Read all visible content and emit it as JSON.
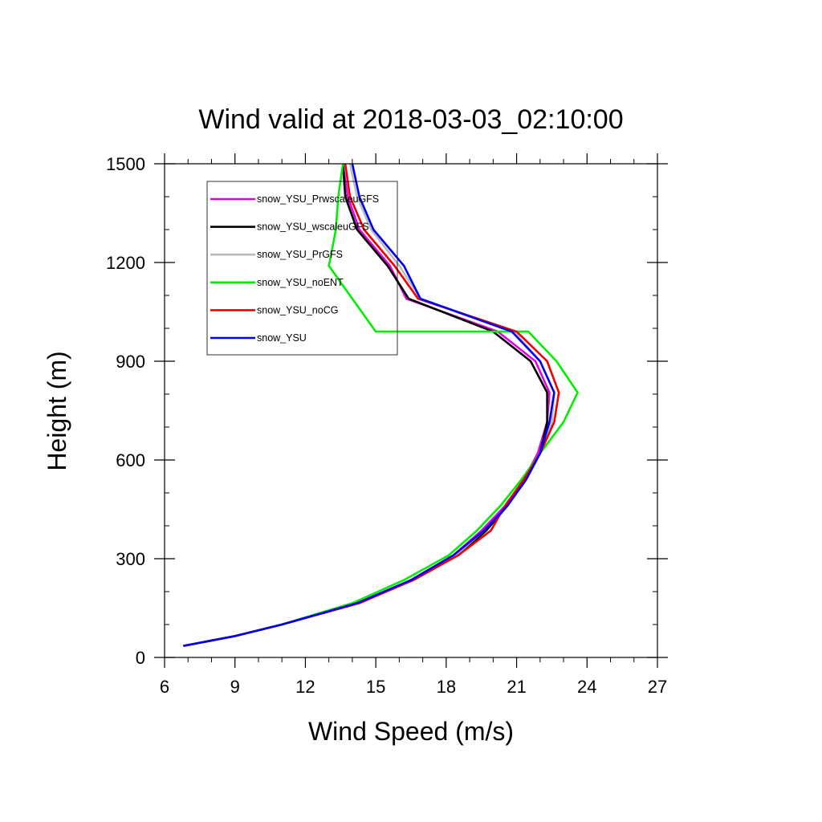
{
  "chart_data": {
    "type": "line",
    "title": "Wind valid at 2018-03-03_02:10:00",
    "xlabel": "Wind Speed (m/s)",
    "ylabel": "Height (m)",
    "xlim": [
      6,
      27
    ],
    "ylim": [
      0,
      1500
    ],
    "xticks": [
      6,
      9,
      12,
      15,
      18,
      21,
      24,
      27
    ],
    "yticks": [
      0,
      300,
      600,
      900,
      1200,
      1500
    ],
    "legend_position": "upper-left",
    "series": [
      {
        "name": "snow_YSU_PrwscaleuGFS",
        "color": "#e600e6",
        "points": [
          [
            6.8,
            35
          ],
          [
            9.0,
            65
          ],
          [
            11.0,
            100
          ],
          [
            14.2,
            165
          ],
          [
            16.5,
            235
          ],
          [
            18.3,
            310
          ],
          [
            19.5,
            385
          ],
          [
            20.5,
            460
          ],
          [
            21.3,
            540
          ],
          [
            21.9,
            620
          ],
          [
            22.3,
            715
          ],
          [
            22.4,
            805
          ],
          [
            21.8,
            900
          ],
          [
            20.2,
            990
          ],
          [
            16.3,
            1090
          ],
          [
            15.6,
            1190
          ],
          [
            14.3,
            1300
          ],
          [
            13.8,
            1400
          ],
          [
            13.6,
            1500
          ]
        ]
      },
      {
        "name": "snow_YSU_wscaleuGFS",
        "color": "#000000",
        "points": [
          [
            6.8,
            35
          ],
          [
            9.0,
            65
          ],
          [
            11.0,
            100
          ],
          [
            14.2,
            165
          ],
          [
            16.6,
            235
          ],
          [
            18.5,
            310
          ],
          [
            19.7,
            385
          ],
          [
            20.6,
            460
          ],
          [
            21.4,
            540
          ],
          [
            22.0,
            620
          ],
          [
            22.3,
            715
          ],
          [
            22.3,
            805
          ],
          [
            21.6,
            900
          ],
          [
            20.0,
            990
          ],
          [
            16.4,
            1090
          ],
          [
            15.5,
            1190
          ],
          [
            14.2,
            1300
          ],
          [
            13.7,
            1400
          ],
          [
            13.6,
            1500
          ]
        ]
      },
      {
        "name": "snow_YSU_PrGFS",
        "color": "#bbbbbb",
        "points": [
          [
            6.8,
            35
          ],
          [
            9.0,
            65
          ],
          [
            11.0,
            100
          ],
          [
            14.2,
            165
          ],
          [
            16.5,
            235
          ],
          [
            18.4,
            310
          ],
          [
            19.6,
            385
          ],
          [
            20.6,
            460
          ],
          [
            21.4,
            540
          ],
          [
            22.0,
            620
          ],
          [
            22.5,
            715
          ],
          [
            22.6,
            805
          ],
          [
            22.0,
            900
          ],
          [
            20.9,
            990
          ],
          [
            16.9,
            1090
          ],
          [
            16.0,
            1190
          ],
          [
            14.8,
            1300
          ],
          [
            14.2,
            1400
          ],
          [
            13.9,
            1500
          ]
        ]
      },
      {
        "name": "snow_YSU_noENT",
        "color": "#00ee00",
        "points": [
          [
            6.8,
            35
          ],
          [
            9.0,
            65
          ],
          [
            11.0,
            100
          ],
          [
            14.0,
            165
          ],
          [
            16.2,
            235
          ],
          [
            18.1,
            310
          ],
          [
            19.3,
            385
          ],
          [
            20.3,
            460
          ],
          [
            21.2,
            540
          ],
          [
            22.0,
            620
          ],
          [
            23.0,
            715
          ],
          [
            23.6,
            805
          ],
          [
            22.7,
            900
          ],
          [
            21.5,
            990
          ],
          [
            15.0,
            990
          ],
          [
            14.0,
            1090
          ],
          [
            13.0,
            1190
          ],
          [
            13.3,
            1300
          ],
          [
            13.4,
            1400
          ],
          [
            13.6,
            1500
          ]
        ]
      },
      {
        "name": "snow_YSU_noCG",
        "color": "#ee0000",
        "points": [
          [
            6.8,
            35
          ],
          [
            9.0,
            65
          ],
          [
            11.0,
            100
          ],
          [
            14.3,
            165
          ],
          [
            16.6,
            235
          ],
          [
            18.5,
            310
          ],
          [
            19.9,
            385
          ],
          [
            20.5,
            460
          ],
          [
            21.3,
            540
          ],
          [
            22.0,
            620
          ],
          [
            22.6,
            715
          ],
          [
            22.8,
            805
          ],
          [
            22.3,
            900
          ],
          [
            21.0,
            990
          ],
          [
            16.8,
            1090
          ],
          [
            15.8,
            1190
          ],
          [
            14.5,
            1300
          ],
          [
            13.9,
            1400
          ],
          [
            13.7,
            1500
          ]
        ]
      },
      {
        "name": "snow_YSU",
        "color": "#0000ee",
        "points": [
          [
            6.8,
            35
          ],
          [
            9.0,
            65
          ],
          [
            11.0,
            100
          ],
          [
            14.2,
            165
          ],
          [
            16.5,
            235
          ],
          [
            18.3,
            310
          ],
          [
            19.6,
            385
          ],
          [
            20.6,
            460
          ],
          [
            21.4,
            540
          ],
          [
            22.0,
            620
          ],
          [
            22.4,
            715
          ],
          [
            22.6,
            805
          ],
          [
            22.0,
            900
          ],
          [
            20.8,
            990
          ],
          [
            16.9,
            1090
          ],
          [
            16.2,
            1190
          ],
          [
            14.9,
            1300
          ],
          [
            14.3,
            1400
          ],
          [
            14.0,
            1500
          ]
        ]
      }
    ]
  }
}
